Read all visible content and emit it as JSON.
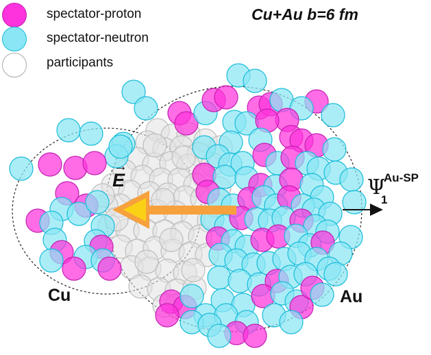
{
  "title": "Cu+Au  b=6 fm",
  "legend": [
    {
      "label": "spectator-proton",
      "fill": "#ff33dd",
      "stroke": "#c020b0"
    },
    {
      "label": "spectator-neutron",
      "fill": "#8ae6f4",
      "stroke": "#18bcd8"
    },
    {
      "label": "participants",
      "fill": "#ffffff",
      "stroke": "#aaaaaa"
    }
  ],
  "labels": {
    "light_nucleus": "Cu",
    "heavy_nucleus": "Au",
    "field_symbol": "E",
    "field_vector_mark": "→",
    "plane_symbol": "Ψ",
    "plane_subscript": "1",
    "plane_superscript": "Au-SP"
  },
  "colors": {
    "proton": "#ff33dd",
    "neutron": "#8ae6f4",
    "participant_fill": "#e2e2e2",
    "participant_stroke": "#bdbdbd",
    "arrow": "#f7a13d",
    "arrow_head_inner": "#fbd116"
  }
}
